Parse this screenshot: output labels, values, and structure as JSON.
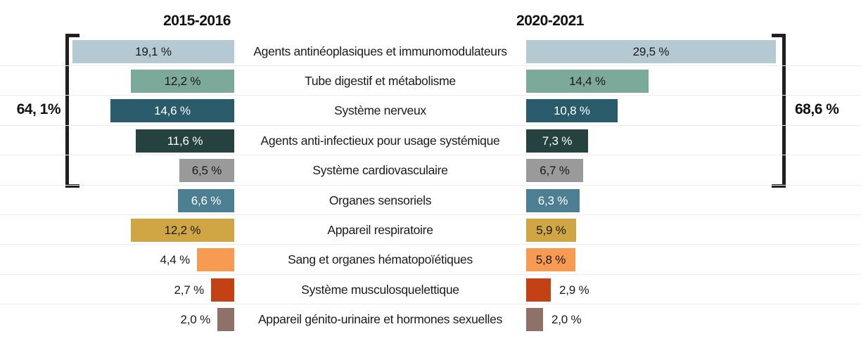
{
  "header": {
    "left": "2015-2016",
    "right": "2020-2021"
  },
  "brackets": {
    "left_total": "64, 1%",
    "right_total": "68,6 %",
    "covers_categories": "top 5 rows"
  },
  "chart_data": {
    "type": "bar",
    "layout_hint": "mirrored horizontal bar chart (butterfly): 2015-2016 bars grow leftward-aligned to center labels, 2020-2021 bars grow rightward; brackets sum the top five categories",
    "categories": [
      "Agents antinéoplasiques et immunomodulateurs",
      "Tube digestif et métabolisme",
      "Système nerveux",
      "Agents anti-infectieux pour usage systémique",
      "Système cardiovasculaire",
      "Organes sensoriels",
      "Appareil respiratoire",
      "Sang et organes hématopoïétiques",
      "Système musculosquelettique",
      "Appareil génito-urinaire et hormones sexuelles"
    ],
    "series": [
      {
        "name": "2015-2016",
        "values": [
          19.1,
          12.2,
          14.6,
          11.6,
          6.5,
          6.6,
          12.2,
          4.4,
          2.7,
          2.0
        ],
        "labels": [
          "19,1 %",
          "12,2 %",
          "14,6 %",
          "11,6 %",
          "6,5 %",
          "6,6 %",
          "12,2 %",
          "4,4 %",
          "2,7 %",
          "2,0 %"
        ]
      },
      {
        "name": "2020-2021",
        "values": [
          29.5,
          14.4,
          10.8,
          7.3,
          6.7,
          6.3,
          5.9,
          5.8,
          2.9,
          2.0
        ],
        "labels": [
          "29,5 %",
          "14,4 %",
          "10,8 %",
          "7,3 %",
          "6,7 %",
          "6,3 %",
          "5,9 %",
          "5,8 %",
          "2,9 %",
          "2,0 %"
        ]
      }
    ],
    "bar_colors": [
      "#b5c9d3",
      "#7da99b",
      "#2a5b6b",
      "#254140",
      "#9a9a9a",
      "#4d7f92",
      "#d0a544",
      "#f79b52",
      "#c44116",
      "#8e7168"
    ],
    "value_text_colors": [
      "#1a1a1a",
      "#1a1a1a",
      "#ffffff",
      "#ffffff",
      "#1a1a1a",
      "#ffffff",
      "#1a1a1a",
      "#1a1a1a",
      "#1a1a1a",
      "#1a1a1a"
    ],
    "annotations": [
      {
        "text": "64, 1%",
        "side": "left",
        "meaning": "sum of top five categories 2015-2016"
      },
      {
        "text": "68,6 %",
        "side": "right",
        "meaning": "sum of top five categories 2020-2021"
      }
    ],
    "xlim_percent": [
      0,
      30
    ],
    "grid": "light horizontal separators between rows",
    "legend_position": "column headers above each bar group"
  }
}
